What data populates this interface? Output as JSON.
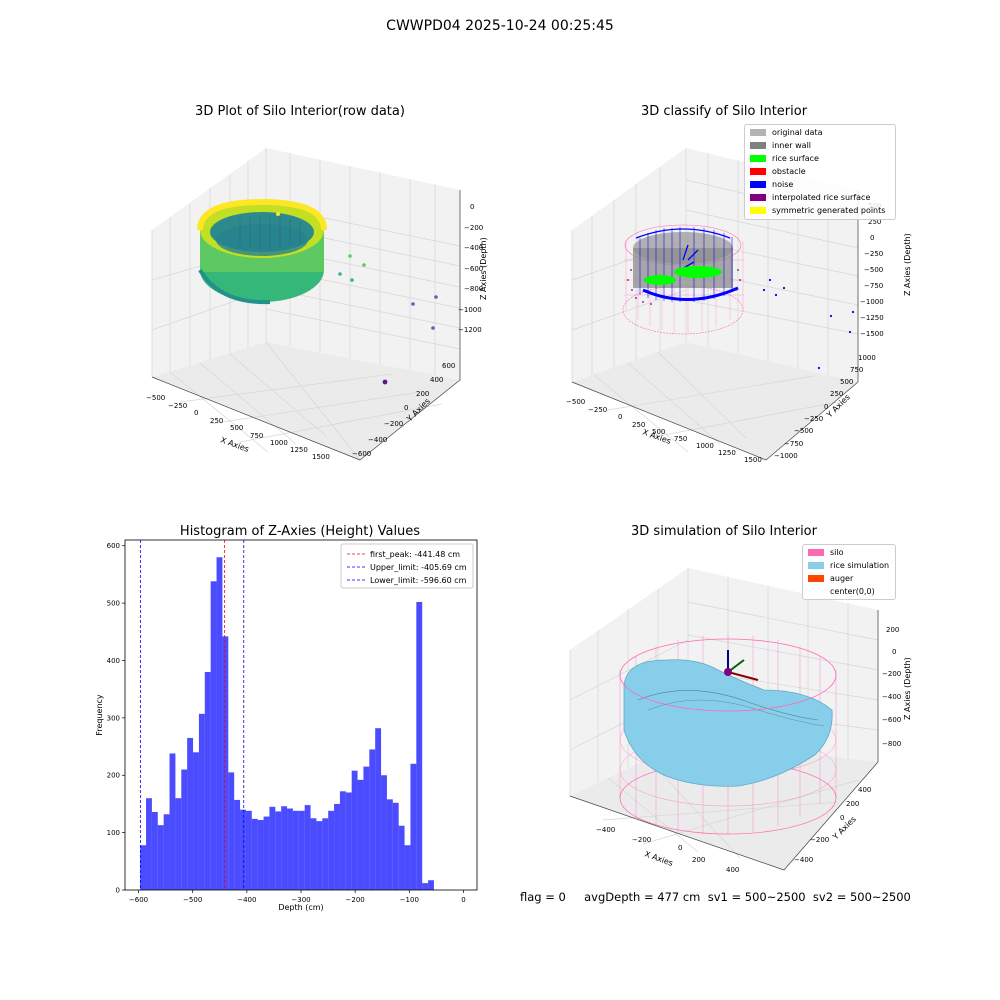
{
  "figure": {
    "suptitle": "CWWPD04 2025-10-24 00:25:45",
    "footer": "flag = 0     avgDepth = 477 cm  sv1 = 500~2500  sv2 = 500~2500"
  },
  "panels": {
    "raw": {
      "title": "3D Plot of Silo Interior(row data)",
      "x_label": "X Axies",
      "y_label": "Y Axies",
      "z_label": "Z Axies (Depth)",
      "x_ticks": [
        "−500",
        "−250",
        "0",
        "250",
        "500",
        "750",
        "1000",
        "1250",
        "1500"
      ],
      "y_ticks": [
        "−600",
        "−400",
        "−200",
        "0",
        "200",
        "400",
        "600"
      ],
      "z_ticks": [
        "0",
        "−200",
        "−400",
        "−600",
        "−800",
        "−1000",
        "−1200"
      ]
    },
    "classify": {
      "title": "3D classify of Silo Interior",
      "x_label": "X Axies",
      "y_label": "Y Axies",
      "z_label": "Z Axies (Depth)",
      "x_ticks": [
        "−500",
        "−250",
        "0",
        "250",
        "500",
        "750",
        "1000",
        "1250",
        "1500"
      ],
      "y_ticks": [
        "−1000",
        "−750",
        "−500",
        "−250",
        "0",
        "250",
        "500",
        "750",
        "1000"
      ],
      "z_ticks": [
        "500",
        "250",
        "0",
        "−250",
        "−500",
        "−750",
        "−1000",
        "−1250",
        "−1500"
      ],
      "legend": [
        {
          "label": "original data",
          "color": "#b3b3b3"
        },
        {
          "label": "inner wall",
          "color": "#808080"
        },
        {
          "label": "rice surface",
          "color": "#00ff00"
        },
        {
          "label": "obstacle",
          "color": "#ff0000"
        },
        {
          "label": "noise",
          "color": "#0000ff"
        },
        {
          "label": "interpolated rice surface",
          "color": "#800080"
        },
        {
          "label": "symmetric generated points",
          "color": "#ffff00"
        }
      ]
    },
    "simulation": {
      "title": "3D simulation of Silo Interior",
      "x_label": "X Axies",
      "y_label": "Y Axies",
      "z_label": "Z Axies (Depth)",
      "x_ticks": [
        "−400",
        "−200",
        "0",
        "200",
        "400"
      ],
      "y_ticks": [
        "−400",
        "−200",
        "0",
        "200",
        "400"
      ],
      "z_ticks": [
        "200",
        "0",
        "−200",
        "−400",
        "−600",
        "−800"
      ],
      "legend": [
        {
          "label": "silo",
          "color": "#ff69b4"
        },
        {
          "label": "rice simulation",
          "color": "#87ceeb"
        },
        {
          "label": "auger",
          "color": "#ff4500"
        },
        {
          "label": "center(0,0)",
          "color": "none"
        }
      ],
      "colors": {
        "silo": "#ff69b4",
        "rice": "#87ceeb"
      }
    }
  },
  "chart_data": {
    "type": "bar",
    "title": "Histogram of Z-Axies (Height) Values",
    "xlabel": "Depth (cm)",
    "ylabel": "Frequency",
    "xlim": [
      -625,
      25
    ],
    "ylim": [
      0,
      610
    ],
    "x_ticks": [
      -600,
      -500,
      -400,
      -300,
      -200,
      -100,
      0
    ],
    "x_tick_labels": [
      "−600",
      "−500",
      "−400",
      "−300",
      "−200",
      "−100",
      "0"
    ],
    "y_ticks": [
      0,
      100,
      200,
      300,
      400,
      500,
      600
    ],
    "bar_color": "#0000ff",
    "bin_start": -597,
    "bin_width": 10.85,
    "values": [
      78,
      160,
      136,
      113,
      132,
      238,
      160,
      210,
      265,
      240,
      307,
      380,
      538,
      580,
      442,
      205,
      157,
      140,
      138,
      124,
      122,
      128,
      145,
      137,
      146,
      142,
      138,
      138,
      148,
      125,
      120,
      125,
      138,
      150,
      172,
      170,
      208,
      192,
      215,
      245,
      282,
      200,
      158,
      152,
      112,
      78,
      220,
      502,
      12,
      17
    ],
    "vlines": [
      {
        "label": "first_peak: -441.48 cm",
        "x": -441.48,
        "color": "#ff0000"
      },
      {
        "label": "Upper_limit: -405.69 cm",
        "x": -405.69,
        "color": "#0000ff"
      },
      {
        "label": "Lower_limit: -596.60 cm",
        "x": -596.6,
        "color": "#0000ff"
      }
    ],
    "legend_position": "top-right"
  }
}
